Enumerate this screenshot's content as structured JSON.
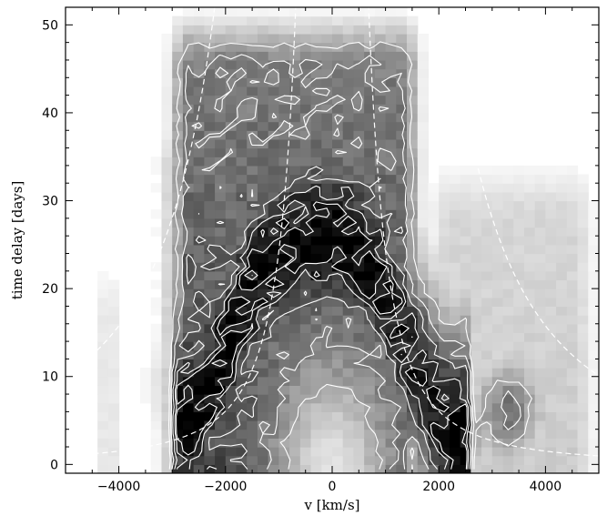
{
  "chart_data": {
    "type": "heatmap",
    "title": "",
    "xlabel": "v  [km/s]",
    "ylabel": "time delay  [days]",
    "xlim": [
      -5000,
      5000
    ],
    "ylim": [
      -1,
      52
    ],
    "x_ticks": [
      -4000,
      -2000,
      0,
      2000,
      4000
    ],
    "x_tick_labels": [
      "−4000",
      "−2000",
      "0",
      "2000",
      "4000"
    ],
    "y_ticks": [
      0,
      10,
      20,
      30,
      40,
      50
    ],
    "y_tick_labels": [
      "0",
      "10",
      "20",
      "30",
      "40",
      "50"
    ],
    "grid": false,
    "colormap": "grayscale (white = low, black = high)",
    "contour_color": "#ffffff",
    "model_curve_color": "#ffffff",
    "colors": {
      "frame": "#000000",
      "background": "#ffffff"
    },
    "features": {
      "emission_columns": [
        {
          "v_min": -3150,
          "v_max": 1750,
          "delay_max": 52,
          "intensity": 0.75
        },
        {
          "v_min": -3350,
          "v_max": -2800,
          "delay_max": 41,
          "intensity": 0.3
        },
        {
          "v_min": -4450,
          "v_max": -3950,
          "delay_max": 24,
          "intensity": 0.25
        },
        {
          "v_min": 1750,
          "v_max": 5000,
          "delay_max": 35,
          "intensity": 0.2
        }
      ],
      "peak_ridge_velocity": [
        -2600,
        -2300,
        -2000,
        -1600,
        -1200,
        -800,
        -400,
        0,
        400,
        800,
        1200,
        1600,
        2000,
        2300
      ],
      "peak_ridge_delay": [
        5,
        8,
        12,
        18,
        22,
        24,
        25,
        25,
        24,
        21,
        15,
        9,
        4,
        3
      ],
      "blobs": [
        {
          "v": 3300,
          "delay": 6,
          "intensity": 0.55
        },
        {
          "v": 2150,
          "delay": 4,
          "intensity": 0.7
        },
        {
          "v": -2400,
          "delay": 9,
          "intensity": 0.7
        }
      ]
    },
    "contour_levels": [
      1,
      2,
      3,
      4,
      5
    ],
    "virial_envelopes": [
      {
        "name": "",
        "k": 900
      },
      {
        "name": "",
        "k": 2900
      }
    ]
  }
}
